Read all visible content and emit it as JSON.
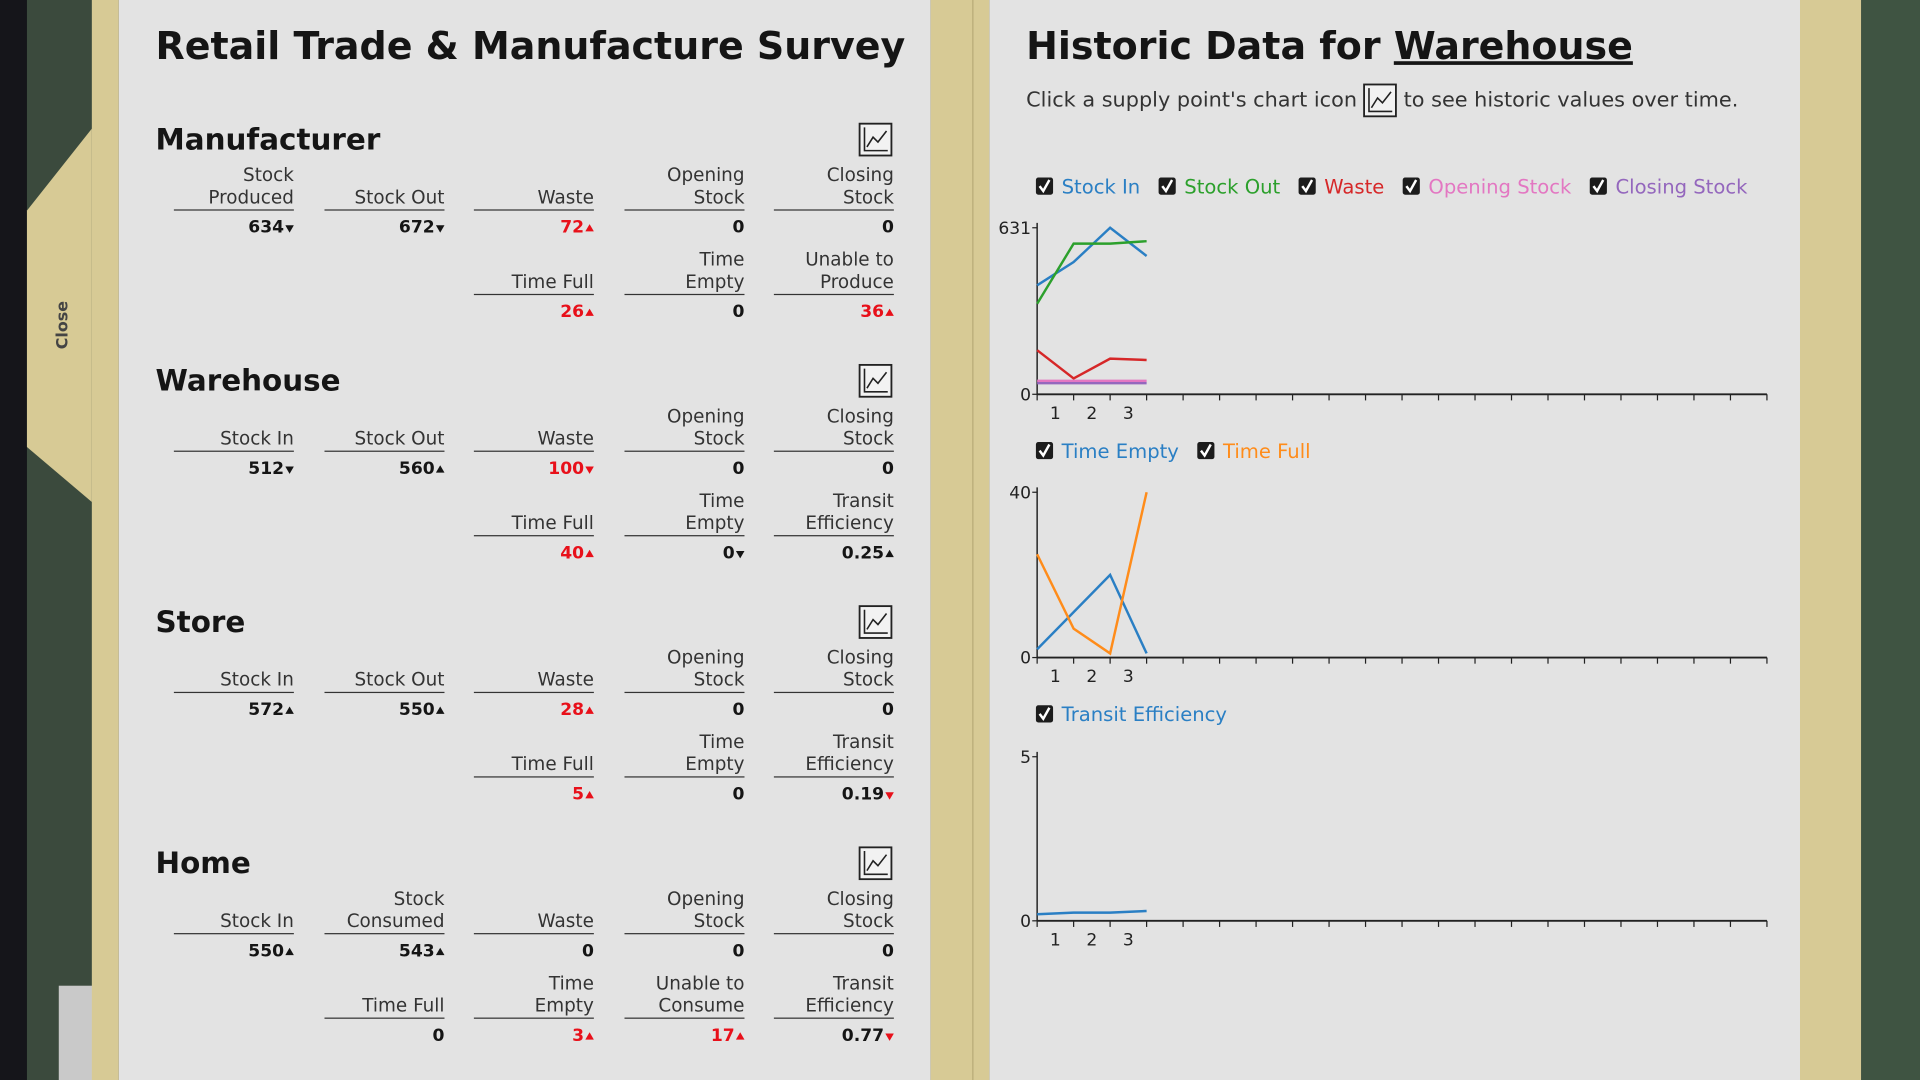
{
  "close": "Close",
  "survey": {
    "title": "Retail Trade & Manufacture Survey",
    "sections": [
      {
        "title": "Manufacturer",
        "rows": [
          [
            {
              "label": "Stock Produced",
              "value": 634,
              "trend": "down"
            },
            {
              "label": "Stock Out",
              "value": 672,
              "trend": "down"
            },
            {
              "label": "Waste",
              "value": 72,
              "trend": "up",
              "alert": true
            },
            {
              "label": "Opening Stock",
              "value": 0
            },
            {
              "label": "Closing Stock",
              "value": 0
            }
          ],
          [
            null,
            null,
            {
              "label": "Time Full",
              "value": 26,
              "trend": "up",
              "alert": true
            },
            {
              "label": "Time Empty",
              "value": 0
            },
            {
              "label": "Unable to Produce",
              "value": 36,
              "trend": "up",
              "alert": true
            }
          ]
        ]
      },
      {
        "title": "Warehouse",
        "rows": [
          [
            {
              "label": "Stock In",
              "value": 512,
              "trend": "down"
            },
            {
              "label": "Stock Out",
              "value": 560,
              "trend": "up"
            },
            {
              "label": "Waste",
              "value": 100,
              "trend": "down",
              "alert": true
            },
            {
              "label": "Opening Stock",
              "value": 0
            },
            {
              "label": "Closing Stock",
              "value": 0
            }
          ],
          [
            null,
            null,
            {
              "label": "Time Full",
              "value": 40,
              "trend": "up",
              "alert": true
            },
            {
              "label": "Time Empty",
              "value": 0,
              "trend": "down"
            },
            {
              "label": "Transit Efficiency",
              "value": 0.25,
              "trend": "up"
            }
          ]
        ]
      },
      {
        "title": "Store",
        "rows": [
          [
            {
              "label": "Stock In",
              "value": 572,
              "trend": "up"
            },
            {
              "label": "Stock Out",
              "value": 550,
              "trend": "up"
            },
            {
              "label": "Waste",
              "value": 28,
              "trend": "up",
              "alert": true
            },
            {
              "label": "Opening Stock",
              "value": 0
            },
            {
              "label": "Closing Stock",
              "value": 0
            }
          ],
          [
            null,
            null,
            {
              "label": "Time Full",
              "value": 5,
              "trend": "up",
              "alert": true
            },
            {
              "label": "Time Empty",
              "value": 0
            },
            {
              "label": "Transit Efficiency",
              "value": 0.19,
              "trend": "down",
              "trend_alert": true
            }
          ]
        ]
      },
      {
        "title": "Home",
        "rows": [
          [
            {
              "label": "Stock In",
              "value": 550,
              "trend": "up"
            },
            {
              "label": "Stock Consumed",
              "value": 543,
              "trend": "up"
            },
            {
              "label": "Waste",
              "value": 0
            },
            {
              "label": "Opening Stock",
              "value": 0
            },
            {
              "label": "Closing Stock",
              "value": 0
            }
          ],
          [
            null,
            {
              "label": "Time Full",
              "value": 0
            },
            {
              "label": "Time Empty",
              "value": 3,
              "trend": "up",
              "alert": true
            },
            {
              "label": "Unable to Consume",
              "value": 17,
              "trend": "up",
              "alert": true
            },
            {
              "label": "Transit Efficiency",
              "value": 0.77,
              "trend": "down",
              "trend_alert": true
            }
          ]
        ]
      }
    ]
  },
  "history": {
    "title": "Historic Data for",
    "subject": "Warehouse",
    "hint_before": "Click a supply point's chart icon",
    "hint_after": "to see historic values over time."
  },
  "chart_data": [
    {
      "type": "line",
      "x": [
        0,
        1,
        2,
        3
      ],
      "xlim": [
        0,
        20
      ],
      "xtick_marks": [
        0,
        1,
        2,
        3,
        4,
        5,
        6,
        7,
        8,
        9,
        10,
        11,
        12,
        13,
        14,
        15,
        16,
        17,
        18,
        19,
        20
      ],
      "periods": [
        "1",
        "2",
        "3"
      ],
      "ylim": [
        0,
        631
      ],
      "yticks": [
        0,
        631
      ],
      "series": [
        {
          "name": "Stock In",
          "color": "#2a7fc4",
          "values": [
            413,
            501,
            631,
            524
          ]
        },
        {
          "name": "Stock Out",
          "color": "#2ca02c",
          "values": [
            343,
            571,
            571,
            580
          ]
        },
        {
          "name": "Waste",
          "color": "#d62728",
          "values": [
            167,
            60,
            135,
            130
          ]
        },
        {
          "name": "Opening Stock",
          "color": "#e377c2",
          "values": [
            51,
            51,
            51,
            51
          ]
        },
        {
          "name": "Closing Stock",
          "color": "#9467bd",
          "values": [
            42,
            42,
            42,
            42
          ]
        }
      ]
    },
    {
      "type": "line",
      "x": [
        0,
        1,
        2,
        3
      ],
      "xlim": [
        0,
        20
      ],
      "xtick_marks": [
        0,
        1,
        2,
        3,
        4,
        5,
        6,
        7,
        8,
        9,
        10,
        11,
        12,
        13,
        14,
        15,
        16,
        17,
        18,
        19,
        20
      ],
      "periods": [
        "1",
        "2",
        "3"
      ],
      "ylim": [
        0,
        40
      ],
      "yticks": [
        0,
        40
      ],
      "series": [
        {
          "name": "Time Empty",
          "color": "#2a7fc4",
          "values": [
            2,
            11,
            20,
            1
          ]
        },
        {
          "name": "Time Full",
          "color": "#ff8c1a",
          "values": [
            25,
            7,
            1,
            40
          ]
        }
      ]
    },
    {
      "type": "line",
      "x": [
        0,
        1,
        2,
        3
      ],
      "xlim": [
        0,
        20
      ],
      "xtick_marks": [
        0,
        1,
        2,
        3,
        4,
        5,
        6,
        7,
        8,
        9,
        10,
        11,
        12,
        13,
        14,
        15,
        16,
        17,
        18,
        19,
        20
      ],
      "periods": [
        "1",
        "2",
        "3"
      ],
      "ylim": [
        0,
        5
      ],
      "yticks": [
        0,
        5
      ],
      "series": [
        {
          "name": "Transit Efficiency",
          "color": "#2a7fc4",
          "values": [
            0.2,
            0.25,
            0.25,
            0.3
          ]
        }
      ]
    }
  ]
}
